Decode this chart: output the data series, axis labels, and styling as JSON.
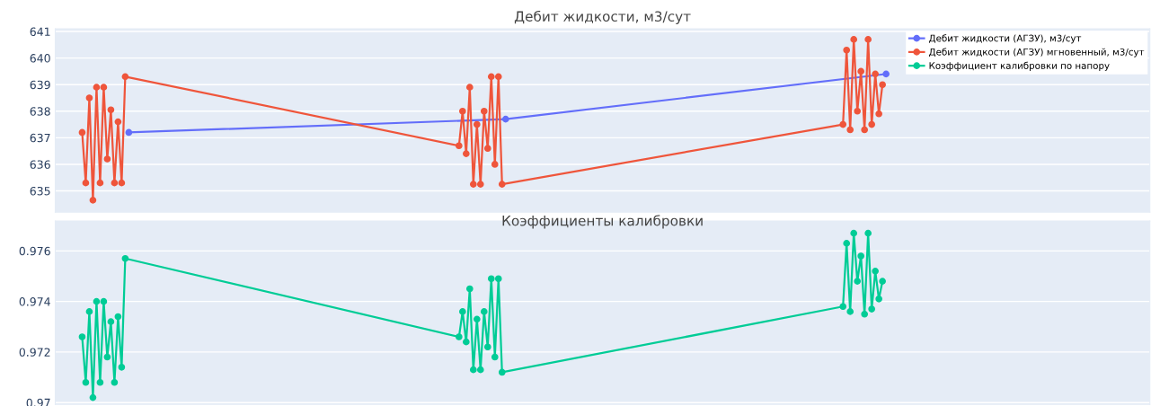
{
  "chart_data": [
    {
      "type": "line",
      "title": "Дебит жидкости, м3/сут",
      "ylim": [
        634.2,
        641.1
      ],
      "yticks": [
        635,
        636,
        637,
        638,
        639,
        640,
        641
      ],
      "grid": "y",
      "legend": "top right",
      "marker": "circle",
      "tick_labels": "y",
      "categories": [
        null,
        null,
        null,
        null,
        null,
        null,
        null,
        null,
        null,
        null,
        null,
        null,
        null,
        null,
        null,
        null,
        null,
        null,
        null,
        null,
        null,
        null,
        null,
        null,
        null,
        null,
        null,
        null,
        null,
        null,
        null,
        null,
        null,
        null,
        null,
        null,
        null,
        null,
        null,
        null,
        null,
        null,
        null,
        null,
        null,
        null,
        null,
        null,
        null,
        null,
        null,
        null,
        null,
        null,
        null,
        null,
        null,
        null,
        null,
        null,
        null,
        null,
        null,
        null,
        null,
        null,
        null,
        null,
        null,
        null,
        null,
        null,
        null,
        null,
        null,
        null,
        null,
        null,
        null,
        null,
        null,
        null,
        null,
        null,
        null,
        null,
        null,
        null,
        null,
        null,
        null,
        null,
        null,
        null,
        null,
        null,
        null,
        null,
        null,
        null,
        null,
        null,
        null,
        null,
        null,
        null,
        null,
        null,
        null,
        null,
        null,
        null,
        null,
        null,
        null,
        null,
        null,
        null,
        null,
        null,
        null,
        null,
        null,
        null,
        null,
        null,
        null,
        null,
        null,
        null,
        null,
        null,
        null,
        null,
        null,
        null,
        null,
        null,
        null,
        null,
        null,
        null,
        null,
        null,
        null,
        null,
        null,
        null,
        null,
        null,
        null,
        null,
        null,
        null,
        null,
        null,
        null,
        null,
        null,
        null,
        null,
        null,
        null,
        null,
        null,
        null,
        null,
        null,
        null,
        null,
        null,
        null,
        null,
        null,
        null,
        null,
        null,
        null,
        null,
        null,
        null,
        null,
        null,
        null,
        null,
        null,
        null,
        null,
        null,
        null,
        null,
        null,
        null,
        null,
        null,
        null,
        null,
        null,
        null,
        null,
        null,
        null,
        null,
        null,
        null,
        null,
        null,
        null,
        null,
        null,
        null,
        null,
        null,
        null,
        null,
        null,
        null,
        null,
        null,
        null,
        null,
        null,
        null,
        null,
        null,
        null,
        null,
        null,
        null,
        null,
        null,
        null,
        null,
        null,
        null,
        null,
        null,
        null,
        null,
        null,
        null,
        null,
        null,
        null,
        null,
        null,
        null,
        null,
        null,
        null,
        null,
        null,
        null,
        null,
        null,
        null,
        null,
        null,
        null,
        null,
        null,
        null,
        null,
        null,
        null,
        null,
        null,
        null,
        null,
        null,
        null,
        null,
        null,
        null,
        null,
        null,
        null,
        null,
        null,
        null,
        null,
        null,
        null,
        null,
        null,
        null,
        null,
        null,
        null,
        null,
        null,
        null,
        null,
        null,
        null,
        null,
        null,
        null,
        null,
        null,
        null,
        null,
        null,
        null,
        null
      ],
      "series": [
        {
          "name": "Дебит жидкости (АГЗУ), м3/сут",
          "color": "#636efa",
          "values": [
            null,
            null,
            null,
            null,
            null,
            null,
            null,
            null,
            null,
            null,
            null,
            null,
            null,
            null,
            null,
            null,
            null,
            null,
            null,
            null,
            637.2,
            null,
            null,
            null,
            null,
            null,
            null,
            null,
            null,
            null,
            null,
            null,
            null,
            null,
            null,
            null,
            null,
            null,
            null,
            null,
            null,
            null,
            null,
            null,
            null,
            null,
            null,
            null,
            null,
            null,
            null,
            null,
            null,
            null,
            null,
            null,
            null,
            null,
            null,
            null,
            null,
            null,
            null,
            null,
            null,
            null,
            null,
            null,
            null,
            null,
            null,
            null,
            null,
            null,
            null,
            null,
            null,
            null,
            null,
            null,
            null,
            null,
            null,
            null,
            null,
            null,
            null,
            null,
            null,
            null,
            null,
            null,
            null,
            null,
            null,
            null,
            null,
            null,
            null,
            null,
            null,
            null,
            null,
            null,
            null,
            null,
            null,
            null,
            null,
            null,
            null,
            null,
            null,
            null,
            null,
            null,
            null,
            null,
            null,
            null,
            null,
            null,
            null,
            null,
            null,
            637.7,
            null,
            null,
            null,
            null,
            null,
            null,
            null,
            null,
            null,
            null,
            null,
            null,
            null,
            null,
            null,
            null,
            null,
            null,
            null,
            null,
            null,
            null,
            null,
            null,
            null,
            null,
            null,
            null,
            null,
            null,
            null,
            null,
            null,
            null,
            null,
            null,
            null,
            null,
            null,
            null,
            null,
            null,
            null,
            null,
            null,
            null,
            null,
            null,
            null,
            null,
            null,
            null,
            null,
            null,
            null,
            null,
            null,
            null,
            null,
            null,
            null,
            null,
            null,
            null,
            null,
            null,
            null,
            null,
            null,
            null,
            null,
            null,
            null,
            null,
            null,
            null,
            null,
            null,
            null,
            null,
            null,
            null,
            null,
            null,
            null,
            null,
            null,
            null,
            null,
            null,
            null,
            null,
            null,
            null,
            null,
            null,
            null,
            null,
            null,
            null,
            null,
            null,
            null,
            null,
            null,
            639.4,
            null,
            null,
            null,
            null,
            null,
            null,
            null,
            null,
            null,
            null,
            null,
            null,
            null,
            null,
            null,
            null,
            null,
            null,
            null,
            null,
            null,
            null,
            null,
            null,
            null,
            null,
            null,
            null,
            null,
            null,
            null,
            null,
            null,
            null,
            null,
            null,
            null,
            null,
            null,
            null,
            null,
            null,
            null,
            null,
            null,
            null,
            null,
            null,
            null,
            null,
            null,
            null,
            null,
            null,
            null,
            null,
            null,
            null,
            null,
            null,
            null,
            null,
            null,
            null,
            null,
            null,
            null,
            null,
            null,
            null,
            null,
            null,
            null
          ]
        },
        {
          "name": "Дебит жидкости (АГЗУ) мгновенный, м3/сут",
          "color": "#ef553b",
          "values": [
            null,
            null,
            null,
            null,
            null,
            null,
            null,
            637.2,
            635.3,
            638.5,
            634.65,
            638.9,
            635.3,
            638.9,
            636.2,
            638.05,
            635.3,
            637.6,
            635.3,
            639.3,
            null,
            null,
            null,
            null,
            null,
            null,
            null,
            null,
            null,
            null,
            null,
            null,
            null,
            null,
            null,
            null,
            null,
            null,
            null,
            null,
            null,
            null,
            null,
            null,
            null,
            null,
            null,
            null,
            null,
            null,
            null,
            null,
            null,
            null,
            null,
            null,
            null,
            null,
            null,
            null,
            null,
            null,
            null,
            null,
            null,
            null,
            null,
            null,
            null,
            null,
            null,
            null,
            null,
            null,
            null,
            null,
            null,
            null,
            null,
            null,
            null,
            null,
            null,
            null,
            null,
            null,
            null,
            null,
            null,
            null,
            null,
            null,
            null,
            null,
            null,
            null,
            null,
            null,
            null,
            null,
            null,
            null,
            null,
            null,
            null,
            null,
            null,
            null,
            null,
            null,
            null,
            null,
            636.7,
            638.0,
            636.4,
            638.9,
            635.25,
            637.5,
            635.25,
            638.0,
            636.6,
            639.3,
            636.0,
            639.3,
            635.25,
            null,
            null,
            null,
            null,
            null,
            null,
            null,
            null,
            null,
            null,
            null,
            null,
            null,
            null,
            null,
            null,
            null,
            null,
            null,
            null,
            null,
            null,
            null,
            null,
            null,
            null,
            null,
            null,
            null,
            null,
            null,
            null,
            null,
            null,
            null,
            null,
            null,
            null,
            null,
            null,
            null,
            null,
            null,
            null,
            null,
            null,
            null,
            null,
            null,
            null,
            null,
            null,
            null,
            null,
            null,
            null,
            null,
            null,
            null,
            null,
            null,
            null,
            null,
            null,
            null,
            null,
            null,
            null,
            null,
            null,
            null,
            null,
            null,
            null,
            null,
            null,
            null,
            null,
            null,
            null,
            null,
            null,
            null,
            null,
            null,
            null,
            null,
            null,
            null,
            null,
            null,
            null,
            null,
            null,
            637.5,
            640.3,
            637.3,
            640.7,
            638.0,
            639.5,
            637.3,
            640.7,
            637.5,
            639.4,
            637.9,
            639.0,
            null,
            null,
            null,
            null,
            null,
            null,
            null,
            null,
            null,
            null,
            null,
            null,
            null,
            null,
            null,
            null,
            null,
            null,
            null,
            null,
            null,
            null,
            null,
            null,
            null,
            null,
            null,
            null,
            null,
            null,
            null,
            null,
            null,
            null,
            null,
            null,
            null,
            null,
            null,
            null,
            null,
            null,
            null,
            null,
            null,
            null,
            null,
            null,
            null,
            null,
            null,
            null,
            null,
            null,
            null,
            null,
            null,
            null,
            null,
            null,
            null,
            null,
            null,
            null,
            null,
            null,
            null,
            null,
            null,
            null,
            null,
            null,
            null,
            null
          ]
        }
      ]
    },
    {
      "type": "line",
      "title": "Коэффициенты калибровки",
      "ylim": [
        0.96993,
        0.97718
      ],
      "yticks": [
        0.97,
        0.972,
        0.974,
        0.976
      ],
      "grid": "y",
      "marker": "circle",
      "tick_labels": "y",
      "categories": [
        null,
        null,
        null,
        null,
        null,
        null,
        null,
        null,
        null,
        null,
        null,
        null,
        null,
        null,
        null,
        null,
        null,
        null,
        null,
        null,
        null,
        null,
        null,
        null,
        null,
        null,
        null,
        null,
        null,
        null,
        null,
        null,
        null,
        null,
        null,
        null,
        null,
        null,
        null,
        null,
        null,
        null,
        null,
        null,
        null,
        null,
        null,
        null,
        null,
        null,
        null,
        null,
        null,
        null,
        null,
        null,
        null,
        null,
        null,
        null,
        null,
        null,
        null,
        null,
        null,
        null,
        null,
        null,
        null,
        null,
        null,
        null,
        null,
        null,
        null,
        null,
        null,
        null,
        null,
        null,
        null,
        null,
        null,
        null,
        null,
        null,
        null,
        null,
        null,
        null,
        null,
        null,
        null,
        null,
        null,
        null,
        null,
        null,
        null,
        null,
        null,
        null,
        null,
        null,
        null,
        null,
        null,
        null,
        null,
        null,
        null,
        null,
        null,
        null,
        null,
        null,
        null,
        null,
        null,
        null,
        null,
        null,
        null,
        null,
        null,
        null,
        null,
        null,
        null,
        null,
        null,
        null,
        null,
        null,
        null,
        null,
        null,
        null,
        null,
        null,
        null,
        null,
        null,
        null,
        null,
        null,
        null,
        null,
        null,
        null,
        null,
        null,
        null,
        null,
        null,
        null,
        null,
        null,
        null,
        null,
        null,
        null,
        null,
        null,
        null,
        null,
        null,
        null,
        null,
        null,
        null,
        null,
        null,
        null,
        null,
        null,
        null,
        null,
        null,
        null,
        null,
        null,
        null,
        null,
        null,
        null,
        null,
        null,
        null,
        null,
        null,
        null,
        null,
        null,
        null,
        null,
        null,
        null,
        null,
        null,
        null,
        null,
        null,
        null,
        null,
        null,
        null,
        null,
        null,
        null,
        null,
        null,
        null,
        null,
        null,
        null,
        null,
        null,
        null,
        null,
        null,
        null,
        null,
        null,
        null,
        null,
        null,
        null,
        null,
        null,
        null,
        null,
        null,
        null,
        null,
        null,
        null,
        null,
        null,
        null,
        null,
        null,
        null,
        null,
        null,
        null,
        null,
        null,
        null,
        null,
        null,
        null,
        null,
        null,
        null,
        null,
        null,
        null,
        null,
        null,
        null,
        null,
        null,
        null,
        null,
        null,
        null,
        null,
        null,
        null,
        null,
        null,
        null,
        null,
        null,
        null,
        null,
        null,
        null,
        null,
        null,
        null,
        null,
        null,
        null,
        null,
        null,
        null,
        null,
        null,
        null,
        null,
        null,
        null,
        null,
        null,
        null,
        null,
        null,
        null,
        null,
        null,
        null,
        null,
        null
      ],
      "series": [
        {
          "name": "Коэффициент калибровки по напору",
          "color": "#00cc96",
          "values": [
            null,
            null,
            null,
            null,
            null,
            null,
            null,
            0.9726,
            0.9708,
            0.9736,
            0.9702,
            0.974,
            0.9708,
            0.974,
            0.9718,
            0.9732,
            0.9708,
            0.9734,
            0.9714,
            0.9757,
            null,
            null,
            null,
            null,
            null,
            null,
            null,
            null,
            null,
            null,
            null,
            null,
            null,
            null,
            null,
            null,
            null,
            null,
            null,
            null,
            null,
            null,
            null,
            null,
            null,
            null,
            null,
            null,
            null,
            null,
            null,
            null,
            null,
            null,
            null,
            null,
            null,
            null,
            null,
            null,
            null,
            null,
            null,
            null,
            null,
            null,
            null,
            null,
            null,
            null,
            null,
            null,
            null,
            null,
            null,
            null,
            null,
            null,
            null,
            null,
            null,
            null,
            null,
            null,
            null,
            null,
            null,
            null,
            null,
            null,
            null,
            null,
            null,
            null,
            null,
            null,
            null,
            null,
            null,
            null,
            null,
            null,
            null,
            null,
            null,
            null,
            null,
            null,
            null,
            null,
            null,
            null,
            0.9726,
            0.9736,
            0.9724,
            0.9745,
            0.9713,
            0.9733,
            0.9713,
            0.9736,
            0.9722,
            0.9749,
            0.9718,
            0.9749,
            0.9712,
            null,
            null,
            null,
            null,
            null,
            null,
            null,
            null,
            null,
            null,
            null,
            null,
            null,
            null,
            null,
            null,
            null,
            null,
            null,
            null,
            null,
            null,
            null,
            null,
            null,
            null,
            null,
            null,
            null,
            null,
            null,
            null,
            null,
            null,
            null,
            null,
            null,
            null,
            null,
            null,
            null,
            null,
            null,
            null,
            null,
            null,
            null,
            null,
            null,
            null,
            null,
            null,
            null,
            null,
            null,
            null,
            null,
            null,
            null,
            null,
            null,
            null,
            null,
            null,
            null,
            null,
            null,
            null,
            null,
            null,
            null,
            null,
            null,
            null,
            null,
            null,
            null,
            null,
            null,
            null,
            null,
            null,
            null,
            null,
            null,
            null,
            null,
            null,
            null,
            null,
            null,
            null,
            null,
            null,
            0.9738,
            0.9763,
            0.9736,
            0.9767,
            0.9748,
            0.9758,
            0.9735,
            0.9767,
            0.9737,
            0.9752,
            0.9741,
            0.9748,
            null,
            null,
            null,
            null,
            null,
            null,
            null,
            null,
            null,
            null,
            null,
            null,
            null,
            null,
            null,
            null,
            null,
            null,
            null,
            null,
            null,
            null,
            null,
            null,
            null,
            null,
            null,
            null,
            null,
            null,
            null,
            null,
            null,
            null,
            null,
            null,
            null,
            null,
            null,
            null,
            null,
            null,
            null,
            null,
            null,
            null,
            null,
            null,
            null,
            null,
            null,
            null,
            null,
            null,
            null,
            null,
            null,
            null,
            null,
            null,
            null,
            null,
            null,
            null,
            null,
            null,
            null,
            null,
            null,
            null,
            null,
            null,
            null,
            null
          ]
        }
      ]
    }
  ]
}
